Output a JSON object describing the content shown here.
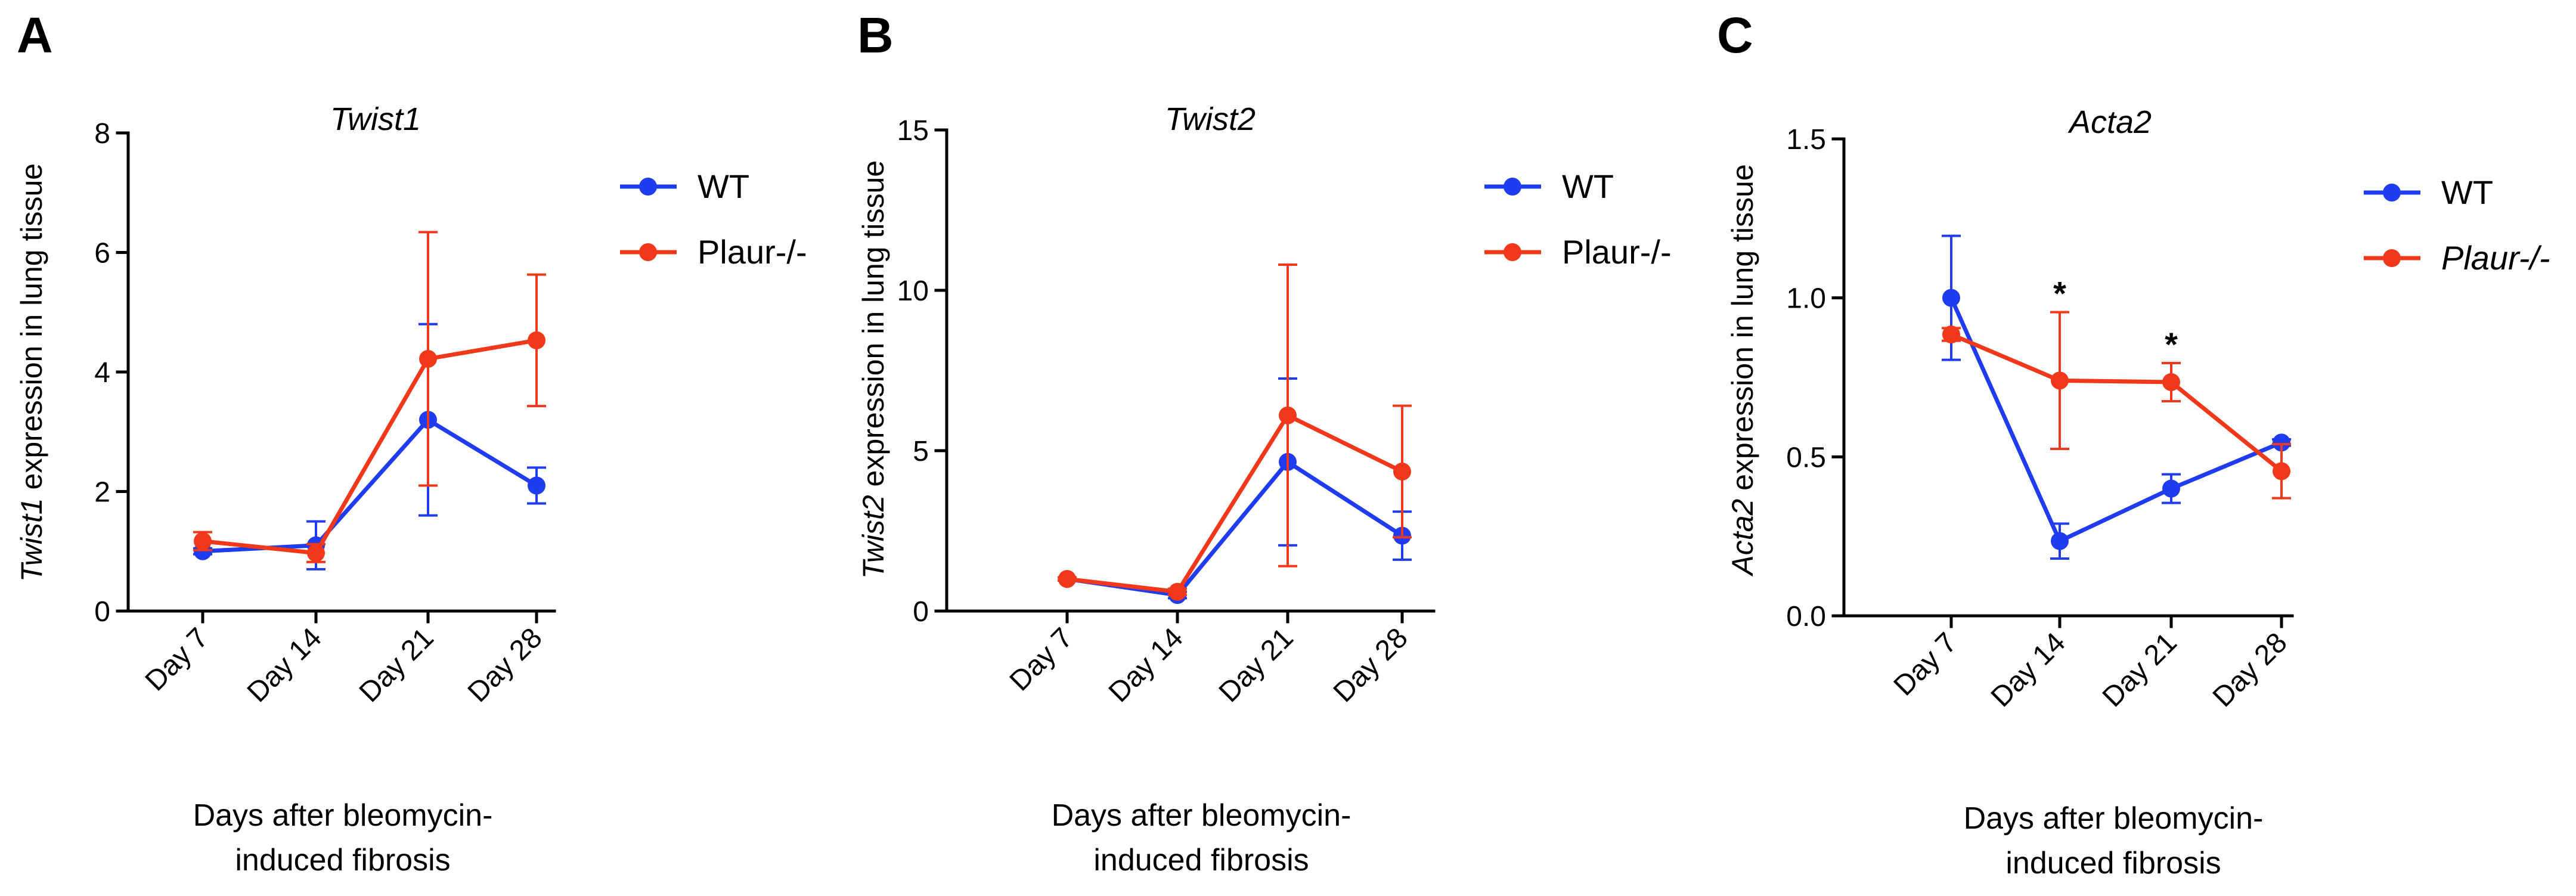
{
  "colors": {
    "wt": "#1f3cf0",
    "ko": "#f2381a"
  },
  "chart_data": [
    {
      "panel": "A",
      "type": "line",
      "title": "Twist1",
      "ylabel_italic": "Twist1",
      "ylabel_rest": " expression in lung tissue",
      "xlabel_lines": [
        "Days after bleomycin-",
        "induced fibrosis"
      ],
      "categories": [
        "Day 7",
        "Day 14",
        "Day 21",
        "Day 28"
      ],
      "ylim": [
        0,
        8
      ],
      "yticks": [
        0,
        2,
        4,
        6,
        8
      ],
      "ytick_labels": [
        "0",
        "2",
        "4",
        "6",
        "8"
      ],
      "series": [
        {
          "name": "WT",
          "italic": false,
          "values": [
            1.0,
            1.1,
            3.2,
            2.1
          ],
          "error": [
            0.05,
            0.4,
            1.6,
            0.3
          ]
        },
        {
          "name": "Plaur-/-",
          "italic": false,
          "values": [
            1.17,
            0.97,
            4.22,
            4.53
          ],
          "error": [
            0.15,
            0.15,
            2.12,
            1.1
          ]
        }
      ],
      "annotations": []
    },
    {
      "panel": "B",
      "type": "line",
      "title": "Twist2",
      "ylabel_italic": "Twist2",
      "ylabel_rest": " expression in lung tissue",
      "xlabel_lines": [
        "Days after bleomycin-",
        "induced fibrosis"
      ],
      "categories": [
        "Day 7",
        "Day 14",
        "Day 21",
        "Day 28"
      ],
      "ylim": [
        0,
        15
      ],
      "yticks": [
        0,
        5,
        10,
        15
      ],
      "ytick_labels": [
        "0",
        "5",
        "10",
        "15"
      ],
      "series": [
        {
          "name": "WT",
          "italic": false,
          "values": [
            1.0,
            0.5,
            4.65,
            2.35
          ],
          "error": [
            0.05,
            0.1,
            2.6,
            0.75
          ]
        },
        {
          "name": "Plaur-/-",
          "italic": false,
          "values": [
            1.0,
            0.6,
            6.1,
            4.35
          ],
          "error": [
            0.05,
            0.1,
            4.7,
            2.05
          ]
        }
      ],
      "annotations": []
    },
    {
      "panel": "C",
      "type": "line",
      "title": "Acta2",
      "ylabel_italic": "Acta2",
      "ylabel_rest": " expression in lung tissue",
      "xlabel_lines": [
        "Days after bleomycin-",
        "induced fibrosis"
      ],
      "categories": [
        "Day 7",
        "Day 14",
        "Day 21",
        "Day 28"
      ],
      "ylim": [
        0,
        1.5
      ],
      "yticks": [
        0,
        0.5,
        1.0,
        1.5
      ],
      "ytick_labels": [
        "0.0",
        "0.5",
        "1.0",
        "1.5"
      ],
      "series": [
        {
          "name": "WT",
          "italic": false,
          "values": [
            1.0,
            0.235,
            0.4,
            0.545
          ],
          "error": [
            0.195,
            0.055,
            0.045,
            0.01
          ]
        },
        {
          "name": "Plaur-/-",
          "italic": true,
          "values": [
            0.885,
            0.74,
            0.735,
            0.455
          ],
          "error": [
            0.02,
            0.215,
            0.06,
            0.085
          ]
        }
      ],
      "annotations": [
        {
          "text": "*",
          "category_index": 1
        },
        {
          "text": "*",
          "category_index": 2
        }
      ]
    }
  ]
}
